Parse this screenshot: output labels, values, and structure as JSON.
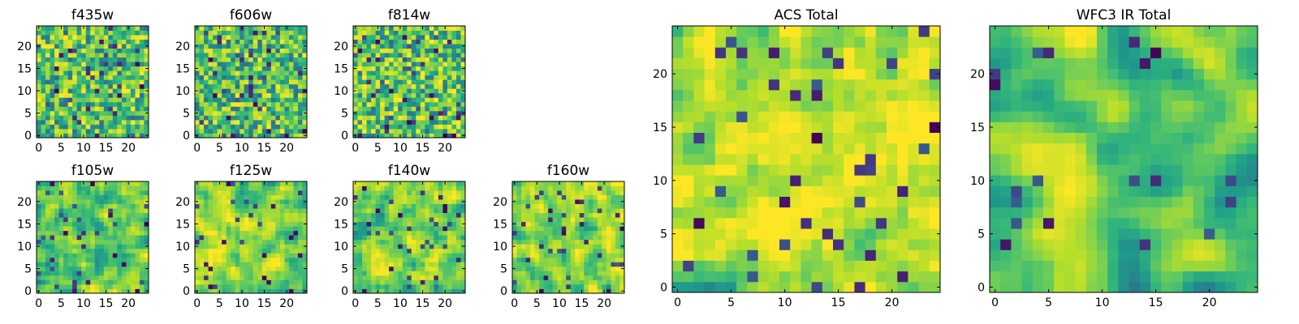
{
  "chart_data": [
    {
      "type": "heatmap",
      "title": "f435w",
      "x_ticks": [
        "0",
        "5",
        "10",
        "15",
        "20"
      ],
      "y_ticks": [
        "0",
        "5",
        "10",
        "15",
        "20"
      ],
      "xlim": [
        0,
        25
      ],
      "ylim": [
        0,
        25
      ],
      "grid": false,
      "colormap": "viridis",
      "seed": 11,
      "smooth": 0,
      "bias": 0.0
    },
    {
      "type": "heatmap",
      "title": "f606w",
      "x_ticks": [
        "0",
        "5",
        "10",
        "15",
        "20"
      ],
      "y_ticks": [
        "0",
        "5",
        "10",
        "15",
        "20"
      ],
      "xlim": [
        0,
        25
      ],
      "ylim": [
        0,
        25
      ],
      "grid": false,
      "colormap": "viridis",
      "seed": 23,
      "smooth": 0,
      "bias": 0.0
    },
    {
      "type": "heatmap",
      "title": "f814w",
      "x_ticks": [
        "0",
        "5",
        "10",
        "15",
        "20"
      ],
      "y_ticks": [
        "0",
        "5",
        "10",
        "15",
        "20"
      ],
      "xlim": [
        0,
        25
      ],
      "ylim": [
        0,
        25
      ],
      "grid": false,
      "colormap": "viridis",
      "seed": 37,
      "smooth": 0,
      "bias": 0.02
    },
    {
      "type": "heatmap",
      "title": "f105w",
      "x_ticks": [
        "0",
        "5",
        "10",
        "15",
        "20"
      ],
      "y_ticks": [
        "0",
        "5",
        "10",
        "15",
        "20"
      ],
      "xlim": [
        0,
        25
      ],
      "ylim": [
        0,
        25
      ],
      "grid": false,
      "colormap": "viridis",
      "seed": 41,
      "smooth": 1,
      "bias": 0.06
    },
    {
      "type": "heatmap",
      "title": "f125w",
      "x_ticks": [
        "0",
        "5",
        "10",
        "15",
        "20"
      ],
      "y_ticks": [
        "0",
        "5",
        "10",
        "15",
        "20"
      ],
      "xlim": [
        0,
        25
      ],
      "ylim": [
        0,
        25
      ],
      "grid": false,
      "colormap": "viridis",
      "seed": 53,
      "smooth": 1,
      "bias": 0.08
    },
    {
      "type": "heatmap",
      "title": "f140w",
      "x_ticks": [
        "0",
        "5",
        "10",
        "15",
        "20"
      ],
      "y_ticks": [
        "0",
        "5",
        "10",
        "15",
        "20"
      ],
      "xlim": [
        0,
        25
      ],
      "ylim": [
        0,
        25
      ],
      "grid": false,
      "colormap": "viridis",
      "seed": 67,
      "smooth": 1,
      "bias": 0.06
    },
    {
      "type": "heatmap",
      "title": "f160w",
      "x_ticks": [
        "0",
        "5",
        "10",
        "15",
        "20"
      ],
      "y_ticks": [
        "0",
        "5",
        "10",
        "15",
        "20"
      ],
      "xlim": [
        0,
        25
      ],
      "ylim": [
        0,
        25
      ],
      "grid": false,
      "colormap": "viridis",
      "seed": 79,
      "smooth": 1,
      "bias": 0.08
    },
    {
      "type": "heatmap",
      "title": "ACS Total",
      "x_ticks": [
        "0",
        "5",
        "10",
        "15",
        "20"
      ],
      "y_ticks": [
        "0",
        "5",
        "10",
        "15",
        "20"
      ],
      "xlim": [
        0,
        25
      ],
      "ylim": [
        0,
        25
      ],
      "grid": false,
      "colormap": "viridis",
      "seed": 97,
      "smooth": 1,
      "bias": 0.12
    },
    {
      "type": "heatmap",
      "title": "WFC3 IR Total",
      "x_ticks": [
        "0",
        "5",
        "10",
        "15",
        "20"
      ],
      "y_ticks": [
        "0",
        "5",
        "10",
        "15",
        "20"
      ],
      "xlim": [
        0,
        25
      ],
      "ylim": [
        0,
        25
      ],
      "grid": false,
      "colormap": "viridis",
      "seed": 101,
      "smooth": 2,
      "bias": 0.05
    }
  ]
}
